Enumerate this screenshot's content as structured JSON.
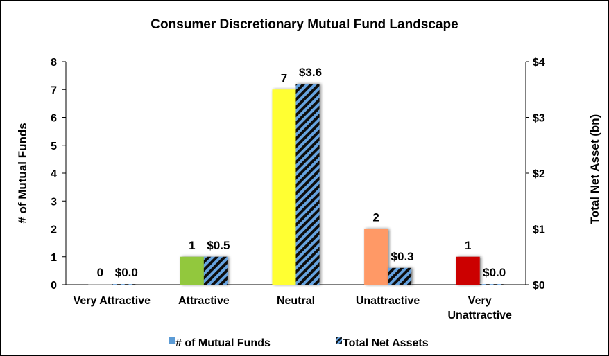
{
  "chart_data": {
    "type": "bar",
    "title": "Consumer Discretionary Mutual Fund Landscape",
    "categories": [
      [
        "Very Attractive"
      ],
      [
        "Attractive"
      ],
      [
        "Neutral"
      ],
      [
        "Unattractive"
      ],
      [
        "Very",
        "Unattractive"
      ]
    ],
    "ylabel": "# of Mutual Funds",
    "y2label": "Total Net Asset (bn)",
    "ylim": [
      0,
      8
    ],
    "y2lim": [
      0,
      4
    ],
    "yticks": [
      "0",
      "1",
      "2",
      "3",
      "4",
      "5",
      "6",
      "7",
      "8"
    ],
    "y2ticks": [
      "$0",
      "$1",
      "$2",
      "$3",
      "$4"
    ],
    "series": [
      {
        "name": "# of Mutual Funds",
        "axis": "left",
        "values": [
          0,
          1,
          7,
          2,
          1
        ],
        "labels": [
          "0",
          "1",
          "7",
          "2",
          "1"
        ],
        "colors": [
          "#a6a6a6",
          "#92c83e",
          "#ffff33",
          "#ff9966",
          "#cc0000"
        ]
      },
      {
        "name": "Total Net Assets",
        "axis": "right",
        "values": [
          0.0,
          0.5,
          3.6,
          0.3,
          0.0
        ],
        "labels": [
          "$0.0",
          "$0.5",
          "$3.6",
          "$0.3",
          "$0.0"
        ],
        "pattern": "diagonal-stripes",
        "colors": [
          "#66a3e0",
          "#111111"
        ]
      }
    ],
    "legend": {
      "placement": "bottom-center",
      "items": [
        "# of Mutual Funds",
        "Total Net Assets"
      ],
      "swatch_color": "#5b9bd5"
    },
    "grid": false
  }
}
